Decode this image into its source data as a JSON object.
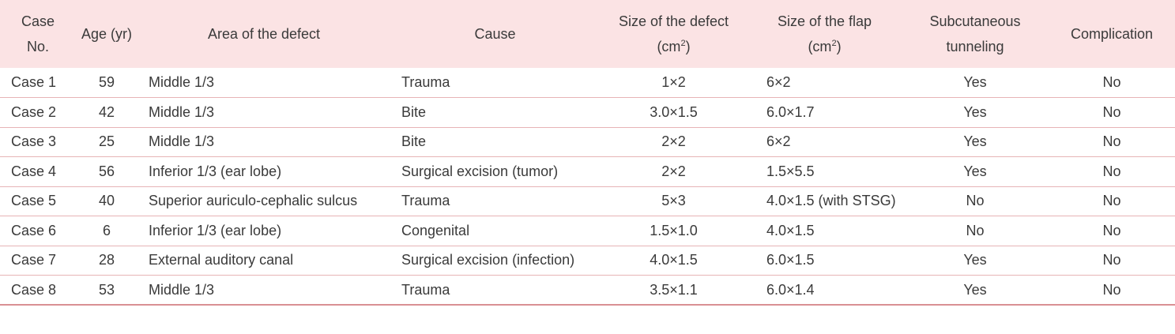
{
  "table": {
    "headers": {
      "case_no_line1": "Case",
      "case_no_line2": "No.",
      "age": "Age (yr)",
      "area": "Area of the defect",
      "cause": "Cause",
      "defect_size_line1": "Size of the defect",
      "defect_size_line2_pre": "(cm",
      "defect_size_sup": "2",
      "defect_size_line2_post": ")",
      "flap_size_line1": "Size of the flap",
      "flap_size_line2_pre": "(cm",
      "flap_size_sup": "2",
      "flap_size_line2_post": ")",
      "subcutaneous_line1": "Subcutaneous",
      "subcutaneous_line2": "tunneling",
      "complication": "Complication"
    },
    "rows": [
      {
        "case": "Case 1",
        "age": "59",
        "area": "Middle 1/3",
        "cause": "Trauma",
        "defect_size": "1×2",
        "flap_size": "6×2",
        "tunneling": "Yes",
        "complication": "No"
      },
      {
        "case": "Case 2",
        "age": "42",
        "area": "Middle 1/3",
        "cause": "Bite",
        "defect_size": "3.0×1.5",
        "flap_size": "6.0×1.7",
        "tunneling": "Yes",
        "complication": "No"
      },
      {
        "case": "Case 3",
        "age": "25",
        "area": "Middle 1/3",
        "cause": "Bite",
        "defect_size": "2×2",
        "flap_size": "6×2",
        "tunneling": "Yes",
        "complication": "No"
      },
      {
        "case": "Case 4",
        "age": "56",
        "area": "Inferior 1/3 (ear lobe)",
        "cause": "Surgical excision (tumor)",
        "defect_size": "2×2",
        "flap_size": "1.5×5.5",
        "tunneling": "Yes",
        "complication": "No"
      },
      {
        "case": "Case 5",
        "age": "40",
        "area": "Superior auriculo-cephalic sulcus",
        "cause": "Trauma",
        "defect_size": "5×3",
        "flap_size": "4.0×1.5 (with STSG)",
        "tunneling": "No",
        "complication": "No"
      },
      {
        "case": "Case 6",
        "age": "6",
        "area": "Inferior 1/3 (ear lobe)",
        "cause": "Congenital",
        "defect_size": "1.5×1.0",
        "flap_size": "4.0×1.5",
        "tunneling": "No",
        "complication": "No"
      },
      {
        "case": "Case 7",
        "age": "28",
        "area": "External auditory canal",
        "cause": "Surgical excision (infection)",
        "defect_size": "4.0×1.5",
        "flap_size": "6.0×1.5",
        "tunneling": "Yes",
        "complication": "No"
      },
      {
        "case": "Case 8",
        "age": "53",
        "area": "Middle 1/3",
        "cause": "Trauma",
        "defect_size": "3.5×1.1",
        "flap_size": "6.0×1.4",
        "tunneling": "Yes",
        "complication": "No"
      }
    ],
    "colors": {
      "header_bg": "#fbe3e4",
      "row_border": "#e7b4b6",
      "bottom_border": "#d99094",
      "text": "#3a3a3a"
    }
  }
}
